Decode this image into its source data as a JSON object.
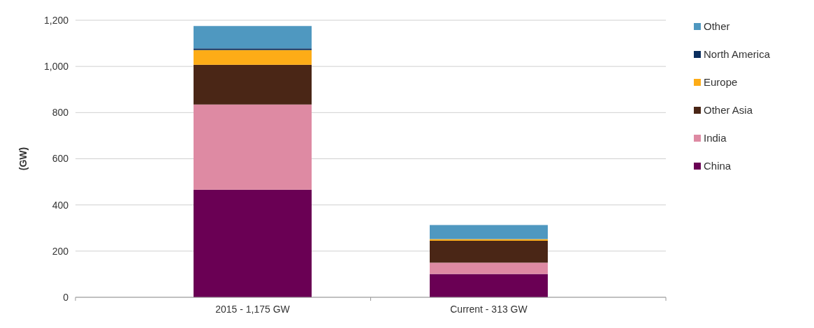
{
  "chart_data": {
    "type": "bar",
    "stacked": true,
    "ylabel": "(GW)",
    "categories": [
      "2015 - 1,175 GW",
      "Current  - 313 GW"
    ],
    "series": [
      {
        "name": "China",
        "color": "#6a0054",
        "values": [
          466,
          101
        ]
      },
      {
        "name": "India",
        "color": "#de8aa3",
        "values": [
          369,
          49
        ]
      },
      {
        "name": "Other Asia",
        "color": "#4a2616",
        "values": [
          172,
          95
        ]
      },
      {
        "name": "Europe",
        "color": "#fdac17",
        "values": [
          64,
          7
        ]
      },
      {
        "name": "North America",
        "color": "#0b2e5e",
        "values": [
          7,
          null
        ]
      },
      {
        "name": "Other",
        "color": "#4f98c0",
        "values": [
          97,
          61
        ]
      }
    ],
    "ylim": [
      0,
      1200
    ],
    "yticks": [
      {
        "value": 0,
        "label": "0"
      },
      {
        "value": 200,
        "label": "200"
      },
      {
        "value": 400,
        "label": "400"
      },
      {
        "value": 600,
        "label": "600"
      },
      {
        "value": 800,
        "label": "800"
      },
      {
        "value": 1000,
        "label": "1,000"
      },
      {
        "value": 1200,
        "label": "1,200"
      }
    ],
    "grid": "y",
    "legend": "right"
  }
}
